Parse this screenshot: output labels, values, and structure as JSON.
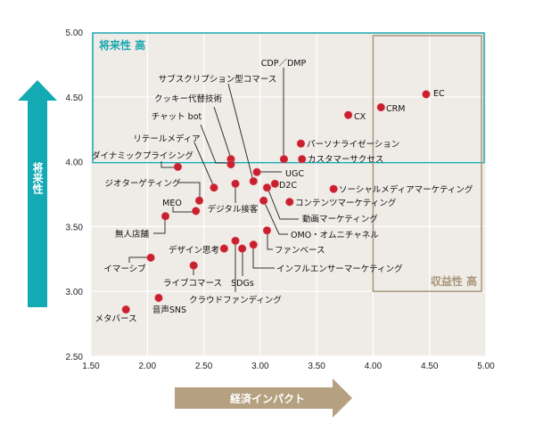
{
  "chart_data": {
    "type": "scatter",
    "title": "",
    "xlabel": "経済インパクト",
    "ylabel": "将来性",
    "xlim": [
      1.5,
      5.0
    ],
    "ylim": [
      2.5,
      5.0
    ],
    "xticks": [
      "1.50",
      "2.00",
      "2.50",
      "3.00",
      "3.50",
      "4.00",
      "4.50",
      "5.00"
    ],
    "yticks": [
      "2.50",
      "3.00",
      "3.50",
      "4.00",
      "4.50",
      "5.00"
    ],
    "grid": true,
    "regions": [
      {
        "label": "将来性 高",
        "x": [
          1.5,
          5.0
        ],
        "y": [
          4.0,
          5.0
        ],
        "color": "#1aa8b0"
      },
      {
        "label": "収益性 高",
        "x": [
          4.0,
          5.0
        ],
        "y": [
          3.0,
          5.0
        ],
        "color": "#a8977a"
      }
    ],
    "point_color": "#c8202e",
    "background": "#efebe6",
    "points": [
      {
        "label": "EC",
        "x": 4.47,
        "y": 4.52
      },
      {
        "label": "CRM",
        "x": 4.07,
        "y": 4.42
      },
      {
        "label": "CX",
        "x": 3.78,
        "y": 4.36
      },
      {
        "label": "パーソナライゼーション",
        "x": 3.36,
        "y": 4.14
      },
      {
        "label": "カスタマーサクセス",
        "x": 3.37,
        "y": 4.02
      },
      {
        "label": "CDP／DMP",
        "x": 3.21,
        "y": 4.02
      },
      {
        "label": "サブスクリプション型コマース",
        "x": 2.94,
        "y": 3.85
      },
      {
        "label": "クッキー代替技術",
        "x": 2.74,
        "y": 4.02
      },
      {
        "label": "チャット bot",
        "x": 2.74,
        "y": 3.98
      },
      {
        "label": "リテールメディア",
        "x": 2.59,
        "y": 3.8
      },
      {
        "label": "ダイナミックプライシング",
        "x": 2.27,
        "y": 3.96
      },
      {
        "label": "UGC",
        "x": 2.97,
        "y": 3.92
      },
      {
        "label": "D2C",
        "x": 3.13,
        "y": 3.83
      },
      {
        "label": "ジオターゲティング",
        "x": 2.46,
        "y": 3.7
      },
      {
        "label": "MEO",
        "x": 2.43,
        "y": 3.62
      },
      {
        "label": "デジタル接客",
        "x": 2.78,
        "y": 3.83
      },
      {
        "label": "無人店舗",
        "x": 2.16,
        "y": 3.58
      },
      {
        "label": "動画マーケティング",
        "x": 3.06,
        "y": 3.8
      },
      {
        "label": "OMO・オムニチャネル",
        "x": 3.03,
        "y": 3.7
      },
      {
        "label": "コンテンツマーケティング",
        "x": 3.26,
        "y": 3.69
      },
      {
        "label": "ソーシャルメディアマーケティング",
        "x": 3.65,
        "y": 3.79
      },
      {
        "label": "ファンベース",
        "x": 3.06,
        "y": 3.47
      },
      {
        "label": "インフルエンサーマーケティング",
        "x": 2.94,
        "y": 3.36
      },
      {
        "label": "SDGs",
        "x": 2.84,
        "y": 3.33
      },
      {
        "label": "クラウドファンディング",
        "x": 2.78,
        "y": 3.39
      },
      {
        "label": "デザイン思考",
        "x": 2.68,
        "y": 3.33
      },
      {
        "label": "イマーシブ",
        "x": 2.03,
        "y": 3.26
      },
      {
        "label": "ライブコマース",
        "x": 2.41,
        "y": 3.2
      },
      {
        "label": "音声SNS",
        "x": 2.1,
        "y": 2.95
      },
      {
        "label": "メタバース",
        "x": 1.81,
        "y": 2.86
      }
    ]
  }
}
